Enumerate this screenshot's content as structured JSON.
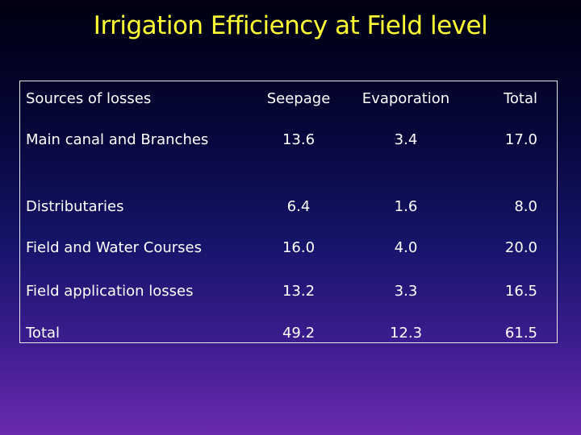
{
  "title": "Irrigation Efficiency at Field level",
  "table": {
    "headers": [
      "Sources of losses",
      "Seepage",
      "Evaporation",
      "Total"
    ],
    "rows": [
      [
        "Main canal and Branches",
        "13.6",
        "3.4",
        "17.0"
      ],
      [
        "Distributaries",
        "6.4",
        "1.6",
        "8.0"
      ],
      [
        "Field and Water Courses",
        "16.0",
        "4.0",
        "20.0"
      ],
      [
        "Field application losses",
        "13.2",
        "3.3",
        "16.5"
      ],
      [
        "Total",
        "49.2",
        "12.3",
        "61.5"
      ]
    ]
  },
  "colors": {
    "title": "#ffff33",
    "text": "#ffffff",
    "border": "#e8e8e8"
  }
}
